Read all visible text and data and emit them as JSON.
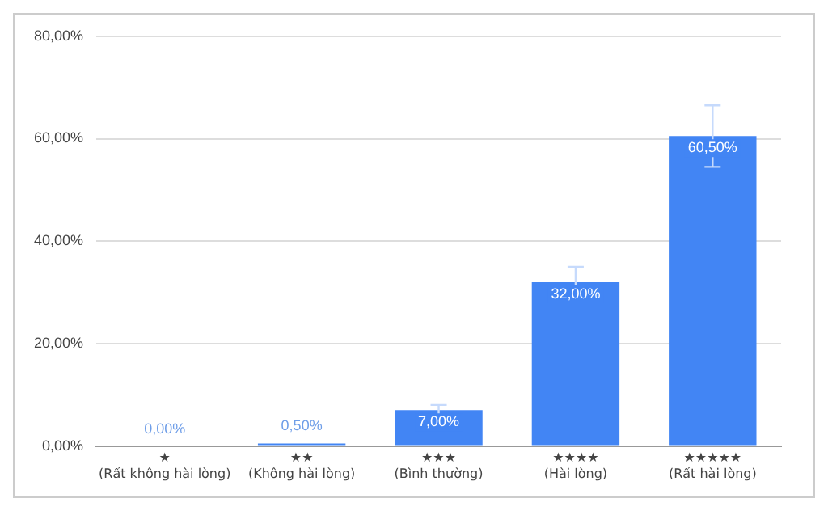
{
  "chart_data": {
    "type": "bar",
    "categories": [
      "★\n(Rất không hài lòng)",
      "★★\n(Không hài lòng)",
      "★★★\n(Bình thường)",
      "★★★★\n(Hài lòng)",
      "★★★★★\n(Rất hài lòng)"
    ],
    "values": [
      0,
      0.5,
      7,
      32,
      60.5
    ],
    "errors": [
      null,
      null,
      1,
      3,
      6
    ],
    "value_labels": [
      "0,00%",
      "0,50%",
      "7,00%",
      "32,00%",
      "60,50%"
    ],
    "color": "#4285f4",
    "ylim": [
      0,
      80
    ],
    "yticks": [
      {
        "value": 0,
        "label": "0,00%"
      },
      {
        "value": 20,
        "label": "20,00%"
      },
      {
        "value": 40,
        "label": "40,00%"
      },
      {
        "value": 60,
        "label": "60,00%"
      },
      {
        "value": 80,
        "label": "80,00%"
      }
    ],
    "grid": "y",
    "legend": false
  }
}
